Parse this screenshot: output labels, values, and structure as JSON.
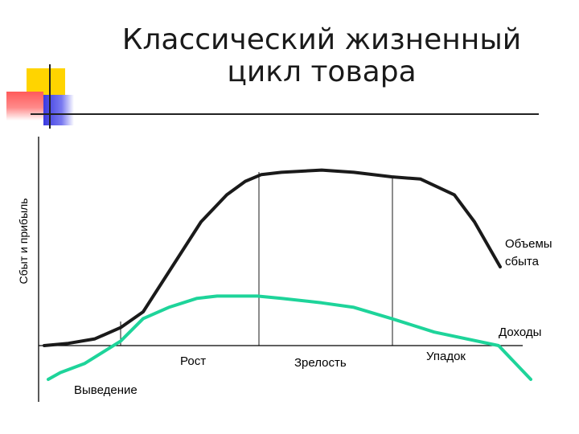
{
  "title": {
    "line1": "Классический жизненный",
    "line2": "цикл товара"
  },
  "colors": {
    "sales_curve": "#1a1a1a",
    "profit_curve": "#1ed49a",
    "deco_yellow": "#ffd400",
    "deco_red": "#ff5a5a",
    "deco_blue": "#3a3ae0"
  },
  "chart_data": {
    "type": "line",
    "title": "Классический жизненный цикл товара",
    "xlabel": "",
    "ylabel": "Сбыт и прибыль",
    "stages": [
      "Выведение",
      "Рост",
      "Зрелость",
      "Упадок"
    ],
    "series": [
      {
        "name": "Объемы сбыта",
        "label_lines": [
          "Объемы",
          "сбыта"
        ],
        "values": [
          0,
          1,
          3,
          8,
          15,
          30,
          55,
          67,
          73,
          76,
          77,
          78,
          77,
          75,
          74,
          67,
          55,
          35
        ]
      },
      {
        "name": "Доходы",
        "values": [
          -15,
          -12,
          -8,
          2,
          12,
          17,
          21,
          22,
          22,
          22,
          21,
          19,
          17,
          12,
          6,
          0,
          -15
        ]
      }
    ]
  }
}
